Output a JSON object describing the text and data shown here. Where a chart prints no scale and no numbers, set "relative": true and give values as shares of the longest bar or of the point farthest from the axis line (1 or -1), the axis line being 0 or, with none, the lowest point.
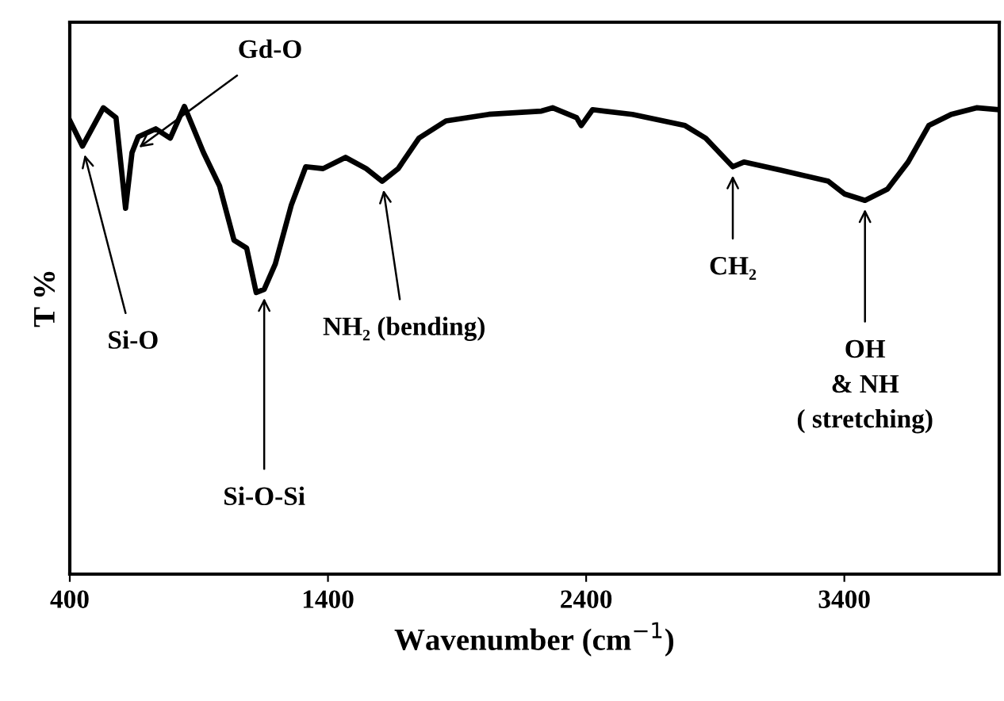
{
  "chart_data": {
    "type": "line",
    "xlabel": "Wavenumber (cm$^{−1}$)",
    "ylabel": "T %",
    "relative": true,
    "xlim": [
      400,
      4000
    ],
    "xticks": [
      400,
      1400,
      2400,
      3400
    ],
    "series": [
      {
        "color": "#000000",
        "x": [
          400,
          449,
          530,
          579,
          616,
          641,
          665,
          733,
          789,
          844,
          918,
          980,
          1036,
          1085,
          1122,
          1153,
          1196,
          1258,
          1314,
          1381,
          1468,
          1548,
          1610,
          1672,
          1752,
          1857,
          2023,
          2227,
          2270,
          2363,
          2381,
          2425,
          2579,
          2783,
          2863,
          2968,
          3011,
          3153,
          3338,
          3400,
          3480,
          3567,
          3647,
          3727,
          3814,
          3912,
          4000
        ],
        "values": [
          0.97,
          0.915,
          0.997,
          0.976,
          0.782,
          0.901,
          0.935,
          0.952,
          0.932,
          1.0,
          0.901,
          0.83,
          0.714,
          0.697,
          0.602,
          0.609,
          0.663,
          0.789,
          0.871,
          0.867,
          0.891,
          0.867,
          0.84,
          0.867,
          0.932,
          0.969,
          0.983,
          0.99,
          0.997,
          0.976,
          0.959,
          0.993,
          0.983,
          0.959,
          0.932,
          0.871,
          0.881,
          0.864,
          0.84,
          0.813,
          0.799,
          0.823,
          0.881,
          0.959,
          0.983,
          0.997,
          0.993
        ]
      }
    ],
    "annotations": [
      {
        "text": "Si-O",
        "x": 449,
        "y": 0.915
      },
      {
        "text": "Gd-O",
        "x": 641,
        "y": 0.901
      },
      {
        "text": "Si-O-Si",
        "x": 1153,
        "y": 0.609
      },
      {
        "text": "NH₂ (bending)",
        "x": 1610,
        "y": 0.84
      },
      {
        "text": "CH₂",
        "x": 2968,
        "y": 0.871
      },
      {
        "text": "OH\n& NH\n( stretching)",
        "x": 3480,
        "y": 0.799
      }
    ]
  }
}
